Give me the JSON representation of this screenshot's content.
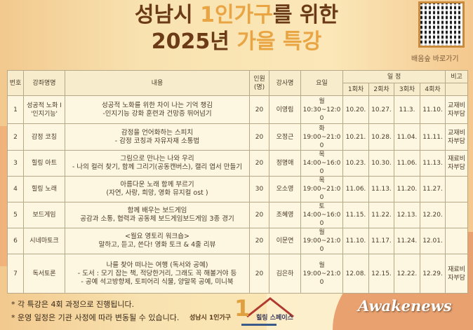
{
  "header": {
    "title_line1_a": "성남시 ",
    "title_line1_b": "1인가구",
    "title_line1_c": "를 위한",
    "title_line2_a": "2025년 ",
    "title_line2_b": "가을 특강",
    "qr_label": "배움숲 바로가기"
  },
  "table": {
    "headers": {
      "no": "번호",
      "name": "강좌명명",
      "content": "내용",
      "count": "인원\n(명)",
      "instructor": "강사명",
      "day": "요일",
      "schedule": "일 정",
      "sessions": [
        "1회차",
        "2회차",
        "3회차",
        "4회차"
      ],
      "note": "비고"
    },
    "rows": [
      {
        "no": "1",
        "name": "성공적 노화 I\n'인지기능'",
        "content": "성공적 노화를 위한 차이 나는 기억 챙김\n-인지기능 강화 훈련과 건망증 뛰어넘기",
        "count": "20",
        "instructor": "이영림",
        "day": "월\n10:30~12:00",
        "dates": [
          "10.20.",
          "10.27.",
          "11.3.",
          "11.10."
        ],
        "note": "교재비\n자부담"
      },
      {
        "no": "2",
        "name": "감정 코칭",
        "content": "감정을 언어화하는 스피치\n- 감정 코칭과 자유자재 소통법",
        "count": "20",
        "instructor": "오정근",
        "day": "화\n19:00~21:00",
        "dates": [
          "10.21.",
          "10.28.",
          "11.04.",
          "11.11."
        ],
        "note": "교재비\n자부담"
      },
      {
        "no": "3",
        "name": "힐링 아트",
        "content": "그림으로 만나는 나와 우리\n- 나의 컬러 찾기, 함께 그리기(공동캔버스), 캘리 엽서 만들기",
        "count": "20",
        "instructor": "정명애",
        "day": "목\n14:00~16:00",
        "dates": [
          "10.23.",
          "10.30.",
          "11.06.",
          "11.13."
        ],
        "note": "재료비\n자부담"
      },
      {
        "no": "4",
        "name": "힐링 노래",
        "content": "아름다운 노래 함께 부르기\n(자연, 사랑, 희망, 영화 뮤지컬 ost )",
        "count": "30",
        "instructor": "오소영",
        "day": "목\n19:00~21:00",
        "dates": [
          "11.06.",
          "11.13.",
          "11.20.",
          "11.27."
        ],
        "note": ""
      },
      {
        "no": "5",
        "name": "보드게임",
        "content": "함께 배우는 보드게임\n공감과 소통, 협력과 공동체 보드게임보드게임 3종 경기",
        "count": "20",
        "instructor": "조혜영",
        "day": "토\n14:00~16:00",
        "dates": [
          "11.15.",
          "11.22.",
          "12.13.",
          "12.20."
        ],
        "note": ""
      },
      {
        "no": "6",
        "name": "시네마토크",
        "content": "<월요 영토리 워크숍>\n말하고, 듣고, 쓴다! 영화 토크 & 4줄 리뷰",
        "count": "20",
        "instructor": "이문연",
        "day": "월\n19:00~21:00",
        "dates": [
          "11.10.",
          "11.17.",
          "11.24.",
          "12.01."
        ],
        "note": ""
      },
      {
        "no": "7",
        "name": "독서토론",
        "content": "나를 찾아 떠나는 여행 (독서와 공예)\n- 도서 : 모기 잡는 책, 적당한거리, 그래도 꼭 해볼거야 등\n- 공예 석고방향제, 토피어리 식물, 양말목 공예, 미니북",
        "count": "20",
        "instructor": "김은하",
        "day": "월\n19:00~21:00",
        "dates": [
          "12.08.",
          "12.15.",
          "12.22.",
          "12.29."
        ],
        "note": "재료비\n자부담"
      }
    ]
  },
  "footer": {
    "notes": [
      "* 각 특강은 4회 과정으로 진행됩니다.",
      "* 운영 일정은 기관 사정에 따라 변동될 수 있습니다."
    ],
    "logo_left": "성남시 1인가구",
    "logo_right": "힐링 스페이스",
    "logo_numeral": "1",
    "brand": "Awakenews"
  },
  "colors": {
    "title_brown": "#6b3a17",
    "title_orange": "#e9a544",
    "table_bg": "#fdf6e0"
  }
}
